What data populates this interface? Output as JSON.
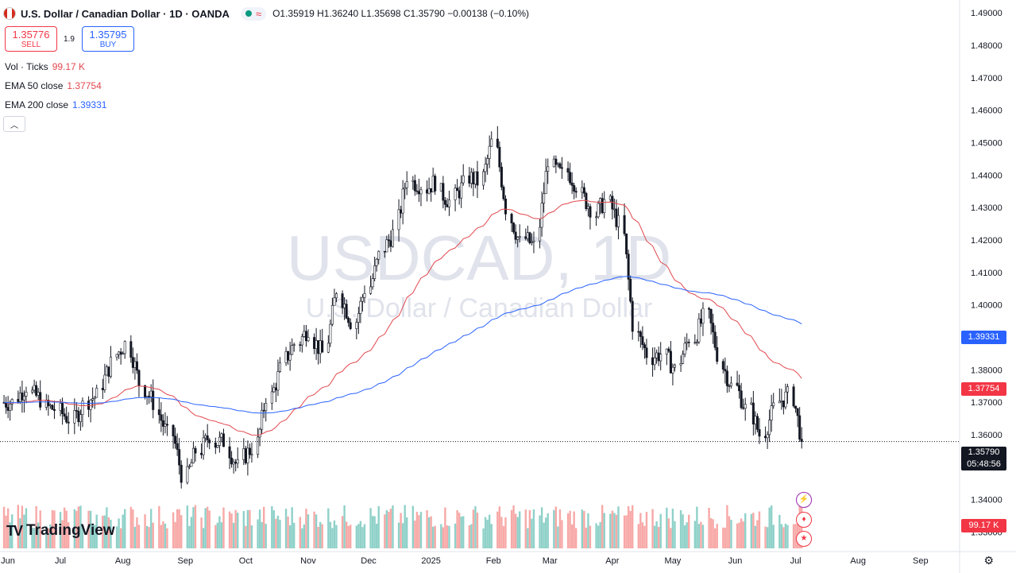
{
  "header": {
    "title": "U.S. Dollar / Canadian Dollar · 1D · OANDA",
    "ohlc": "O1.35919 H1.36240 L1.35698 C1.35790 −0.00138 (−0.10%)"
  },
  "trade": {
    "sell_price": "1.35776",
    "sell_label": "SELL",
    "spread": "1.9",
    "buy_price": "1.35795",
    "buy_label": "BUY"
  },
  "indicators": {
    "volume_label": "Vol · Ticks",
    "volume_value": "99.17 K",
    "ema50_label": "EMA 50 close",
    "ema50_value": "1.37754",
    "ema200_label": "EMA 200 close",
    "ema200_value": "1.39331"
  },
  "watermark": {
    "symbol": "USDCAD, 1D",
    "name": "U.S. Dollar / Canadian Dollar"
  },
  "price_axis": {
    "ticks": [
      "1.49000",
      "1.48000",
      "1.47000",
      "1.46000",
      "1.45000",
      "1.44000",
      "1.43000",
      "1.42000",
      "1.41000",
      "1.40000",
      "1.39000",
      "1.38000",
      "1.37000",
      "1.36000",
      "1.35000",
      "1.34000",
      "1.33000"
    ],
    "ema200_tag": "1.39331",
    "ema50_tag": "1.37754",
    "current_price_tag": "1.35790",
    "countdown_tag": "05:48:56",
    "volume_tag": "99.17 K"
  },
  "time_axis": {
    "labels": [
      "Jun",
      "Jul",
      "Aug",
      "Sep",
      "Oct",
      "Nov",
      "Dec",
      "2025",
      "Feb",
      "Mar",
      "Apr",
      "May",
      "Jun",
      "Jul",
      "Aug",
      "Sep"
    ]
  },
  "logo_text": "TradingView",
  "colors": {
    "up": "#131722",
    "down": "#131722",
    "ema50": "#e2484e",
    "ema200": "#2962ff",
    "vol_up": "#8fd1c9",
    "vol_down": "#f7a9a7"
  },
  "chart_data": {
    "type": "candlestick",
    "symbol": "USDCAD",
    "interval": "1D",
    "ylim": [
      1.325,
      1.492
    ],
    "y_scale_right": true,
    "ohlc_weekly_approx": [
      {
        "t": "2024-06-03",
        "c": 1.37
      },
      {
        "t": "2024-06-10",
        "c": 1.375
      },
      {
        "t": "2024-06-17",
        "c": 1.371
      },
      {
        "t": "2024-06-24",
        "c": 1.368
      },
      {
        "t": "2024-07-01",
        "c": 1.365
      },
      {
        "t": "2024-07-08",
        "c": 1.369
      },
      {
        "t": "2024-07-15",
        "c": 1.372
      },
      {
        "t": "2024-07-22",
        "c": 1.382
      },
      {
        "t": "2024-07-29",
        "c": 1.388
      },
      {
        "t": "2024-08-05",
        "c": 1.376
      },
      {
        "t": "2024-08-12",
        "c": 1.37
      },
      {
        "t": "2024-08-19",
        "c": 1.36
      },
      {
        "t": "2024-08-26",
        "c": 1.348
      },
      {
        "t": "2024-09-02",
        "c": 1.355
      },
      {
        "t": "2024-09-09",
        "c": 1.36
      },
      {
        "t": "2024-09-16",
        "c": 1.358
      },
      {
        "t": "2024-09-23",
        "c": 1.35
      },
      {
        "t": "2024-09-30",
        "c": 1.356
      },
      {
        "t": "2024-10-07",
        "c": 1.372
      },
      {
        "t": "2024-10-14",
        "c": 1.38
      },
      {
        "t": "2024-10-21",
        "c": 1.388
      },
      {
        "t": "2024-10-28",
        "c": 1.393
      },
      {
        "t": "2024-11-04",
        "c": 1.385
      },
      {
        "t": "2024-11-11",
        "c": 1.405
      },
      {
        "t": "2024-11-18",
        "c": 1.395
      },
      {
        "t": "2024-11-25",
        "c": 1.405
      },
      {
        "t": "2024-12-02",
        "c": 1.415
      },
      {
        "t": "2024-12-09",
        "c": 1.422
      },
      {
        "t": "2024-12-16",
        "c": 1.44
      },
      {
        "t": "2024-12-23",
        "c": 1.437
      },
      {
        "t": "2024-12-30",
        "c": 1.438
      },
      {
        "t": "2025-01-06",
        "c": 1.432
      },
      {
        "t": "2025-01-13",
        "c": 1.437
      },
      {
        "t": "2025-01-20",
        "c": 1.438
      },
      {
        "t": "2025-01-27",
        "c": 1.45
      },
      {
        "t": "2025-02-03",
        "c": 1.43
      },
      {
        "t": "2025-02-10",
        "c": 1.419
      },
      {
        "t": "2025-02-17",
        "c": 1.418
      },
      {
        "t": "2025-02-24",
        "c": 1.445
      },
      {
        "t": "2025-03-03",
        "c": 1.44
      },
      {
        "t": "2025-03-10",
        "c": 1.437
      },
      {
        "t": "2025-03-17",
        "c": 1.43
      },
      {
        "t": "2025-03-24",
        "c": 1.432
      },
      {
        "t": "2025-03-31",
        "c": 1.425
      },
      {
        "t": "2025-04-07",
        "c": 1.394
      },
      {
        "t": "2025-04-14",
        "c": 1.385
      },
      {
        "t": "2025-04-21",
        "c": 1.385
      },
      {
        "t": "2025-04-28",
        "c": 1.38
      },
      {
        "t": "2025-05-05",
        "c": 1.39
      },
      {
        "t": "2025-05-12",
        "c": 1.396
      },
      {
        "t": "2025-05-19",
        "c": 1.385
      },
      {
        "t": "2025-05-26",
        "c": 1.375
      },
      {
        "t": "2025-06-02",
        "c": 1.368
      },
      {
        "t": "2025-06-09",
        "c": 1.36
      },
      {
        "t": "2025-06-16",
        "c": 1.368
      },
      {
        "t": "2025-06-23",
        "c": 1.372
      },
      {
        "t": "2025-06-30",
        "c": 1.358
      }
    ],
    "ema50_last": 1.37754,
    "ema200_last": 1.39331,
    "last_close": 1.3579,
    "volume_last": "99.17K"
  }
}
